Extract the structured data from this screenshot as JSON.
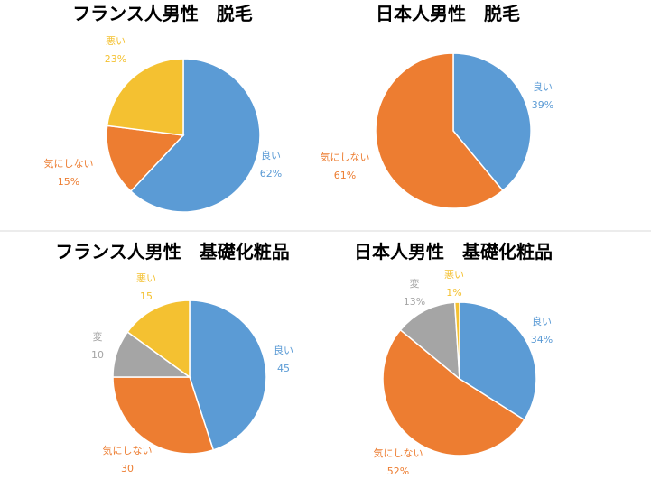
{
  "colors": {
    "good": "#5B9BD5",
    "dontcare": "#ED7D31",
    "bad": "#F4C131",
    "weird": "#A5A5A5",
    "divider": "#D9D9D9"
  },
  "chart_data": [
    {
      "type": "pie",
      "title": "フランス人男性　脱毛",
      "categories": [
        "良い",
        "気にしない",
        "悪い"
      ],
      "values": [
        62,
        15,
        23
      ],
      "value_labels": [
        "62%",
        "15%",
        "23%"
      ],
      "legend": "none"
    },
    {
      "type": "pie",
      "title": "日本人男性　脱毛",
      "categories": [
        "良い",
        "気にしない"
      ],
      "values": [
        39,
        61
      ],
      "value_labels": [
        "39%",
        "61%"
      ],
      "legend": "none"
    },
    {
      "type": "pie",
      "title": "フランス人男性　基礎化粧品",
      "categories": [
        "良い",
        "気にしない",
        "変",
        "悪い"
      ],
      "values": [
        45,
        30,
        10,
        15
      ],
      "value_labels": [
        "45",
        "30",
        "10",
        "15"
      ],
      "legend": "none"
    },
    {
      "type": "pie",
      "title": "日本人男性　基礎化粧品",
      "categories": [
        "良い",
        "気にしない",
        "変",
        "悪い"
      ],
      "values": [
        34,
        52,
        13,
        1
      ],
      "value_labels": [
        "34%",
        "52%",
        "13%",
        "1%"
      ],
      "legend": "none"
    }
  ]
}
